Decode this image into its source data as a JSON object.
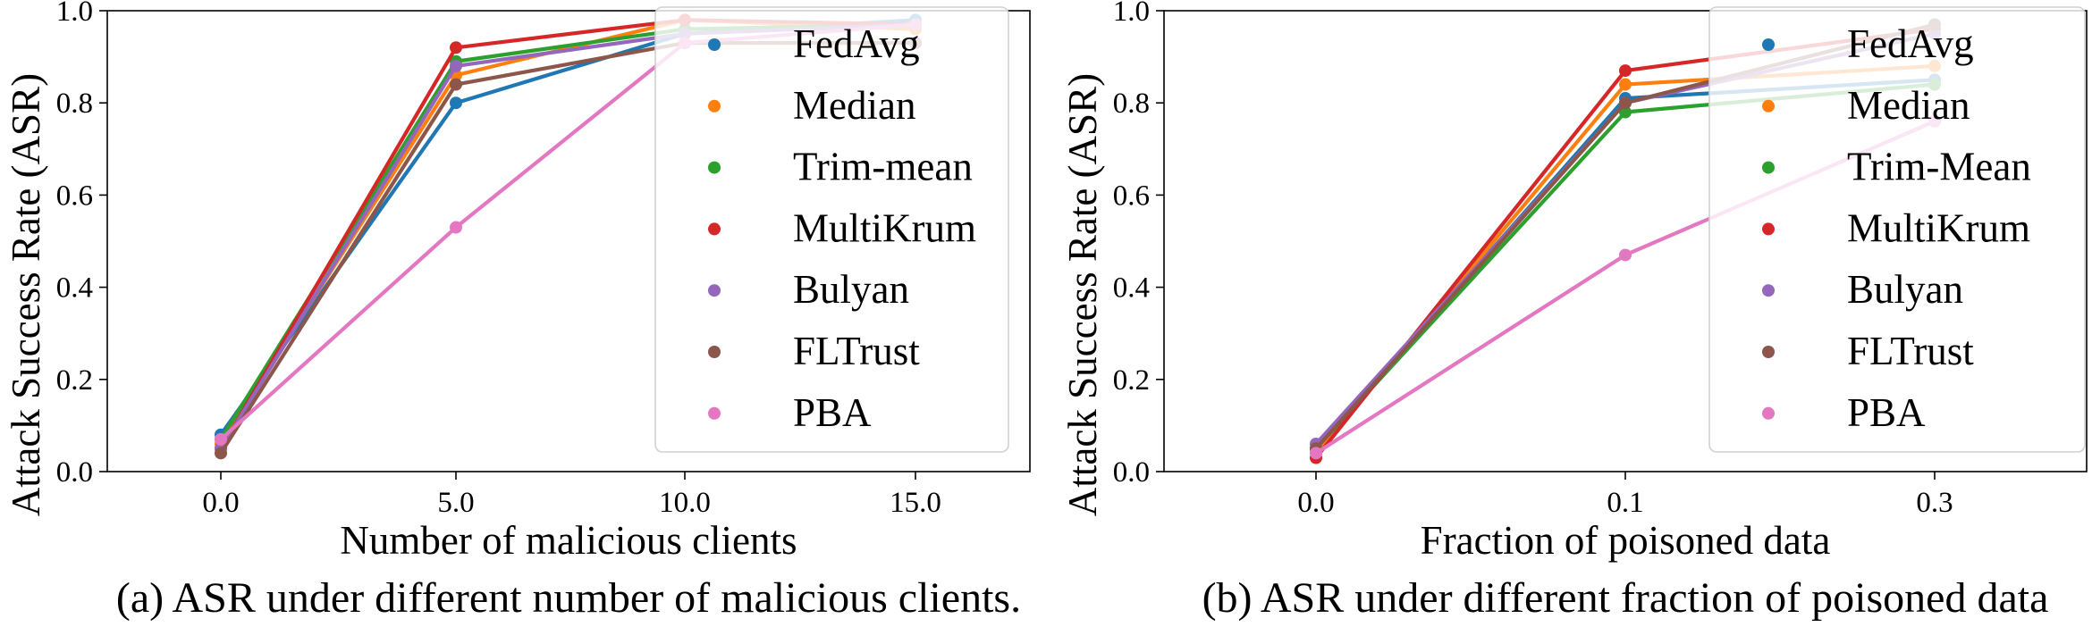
{
  "colors": {
    "FedAvg": "#1f77b4",
    "Median": "#ff7f0e",
    "Trim": "#2ca02c",
    "MultiKrum": "#d62728",
    "Bulyan": "#9467bd",
    "FLTrust": "#8c564b",
    "PBA": "#e377c2"
  },
  "chart_data": [
    {
      "type": "line",
      "caption": "(a) ASR under different number of malicious clients.",
      "xlabel": "Number of malicious clients",
      "ylabel": "Attack Success Rate (ASR)",
      "categories": [
        "0.0",
        "5.0",
        "10.0",
        "15.0"
      ],
      "yticks": [
        "0.0",
        "0.2",
        "0.4",
        "0.6",
        "0.8",
        "1.0"
      ],
      "ylim": [
        0,
        1
      ],
      "grid": false,
      "legend_position": "upper right",
      "series": [
        {
          "name": "FedAvg",
          "color_key": "FedAvg",
          "values": [
            0.08,
            0.8,
            0.95,
            0.98
          ]
        },
        {
          "name": "Median",
          "color_key": "Median",
          "values": [
            0.06,
            0.86,
            0.98,
            0.96
          ]
        },
        {
          "name": "Trim-mean",
          "color_key": "Trim",
          "values": [
            0.07,
            0.89,
            0.96,
            0.97
          ]
        },
        {
          "name": "MultiKrum",
          "color_key": "MultiKrum",
          "values": [
            0.05,
            0.92,
            0.98,
            0.97
          ]
        },
        {
          "name": "Bulyan",
          "color_key": "Bulyan",
          "values": [
            0.05,
            0.88,
            0.95,
            0.97
          ]
        },
        {
          "name": "FLTrust",
          "color_key": "FLTrust",
          "values": [
            0.04,
            0.84,
            0.93,
            0.93
          ]
        },
        {
          "name": "PBA",
          "color_key": "PBA",
          "values": [
            0.07,
            0.53,
            0.93,
            0.97
          ]
        }
      ]
    },
    {
      "type": "line",
      "caption": "(b) ASR under different fraction of poisoned data",
      "xlabel": "Fraction of poisoned data",
      "ylabel": "Attack Success Rate (ASR)",
      "categories": [
        "0.0",
        "0.1",
        "0.3"
      ],
      "yticks": [
        "0.0",
        "0.2",
        "0.4",
        "0.6",
        "0.8",
        "1.0"
      ],
      "ylim": [
        0,
        1
      ],
      "grid": false,
      "legend_position": "upper right",
      "series": [
        {
          "name": "FedAvg",
          "color_key": "FedAvg",
          "values": [
            0.05,
            0.81,
            0.85
          ]
        },
        {
          "name": "Median",
          "color_key": "Median",
          "values": [
            0.04,
            0.84,
            0.88
          ]
        },
        {
          "name": "Trim-Mean",
          "color_key": "Trim",
          "values": [
            0.05,
            0.78,
            0.84
          ]
        },
        {
          "name": "MultiKrum",
          "color_key": "MultiKrum",
          "values": [
            0.03,
            0.87,
            0.96
          ]
        },
        {
          "name": "Bulyan",
          "color_key": "Bulyan",
          "values": [
            0.06,
            0.8,
            0.95
          ]
        },
        {
          "name": "FLTrust",
          "color_key": "FLTrust",
          "values": [
            0.05,
            0.8,
            0.97
          ]
        },
        {
          "name": "PBA",
          "color_key": "PBA",
          "values": [
            0.04,
            0.47,
            0.76
          ]
        }
      ]
    }
  ]
}
